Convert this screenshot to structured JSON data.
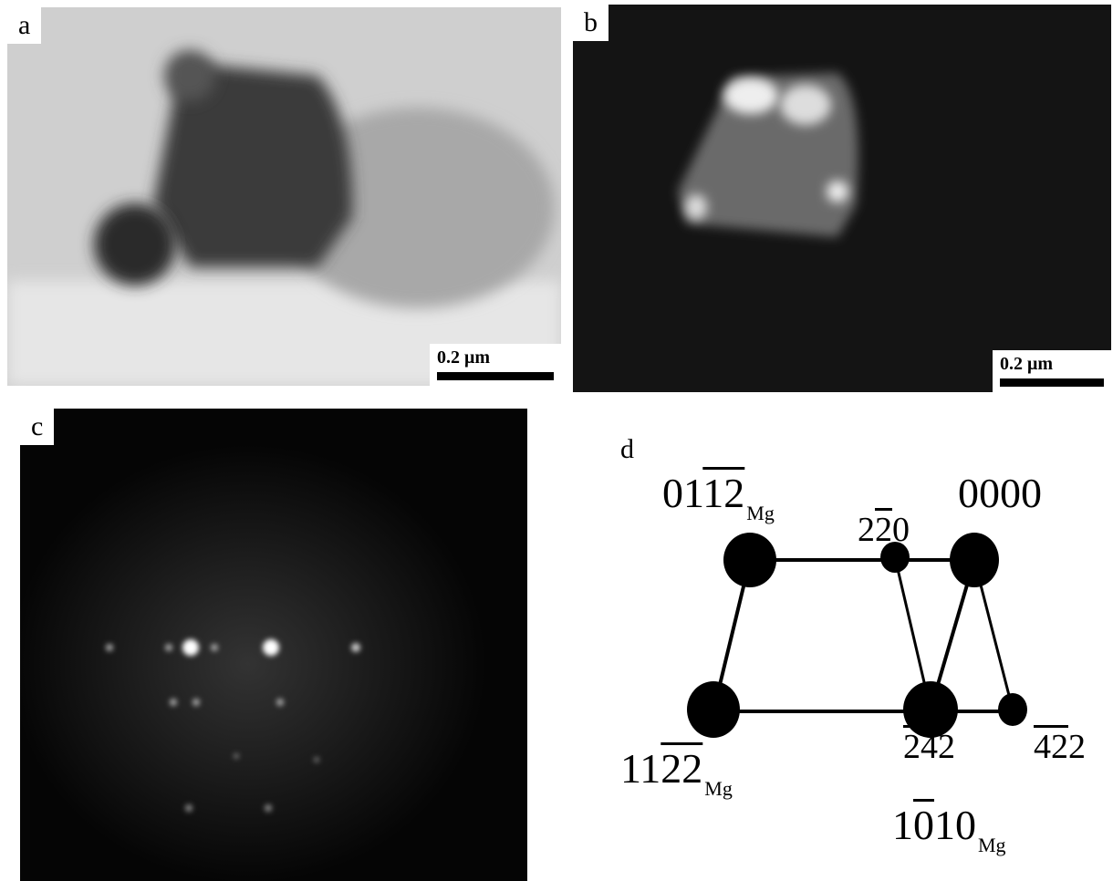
{
  "panels": [
    {
      "label": "a",
      "scale_bar": "0.2 μm"
    },
    {
      "label": "b",
      "scale_bar": "0.2 μm"
    },
    {
      "label": "c"
    },
    {
      "label": "d"
    }
  ],
  "diagram": {
    "labels": [
      {
        "segments": [
          {
            "text": "01"
          },
          {
            "text": "12",
            "overline": true
          }
        ],
        "subscript": "Mg"
      },
      {
        "segments": [
          {
            "text": "2"
          },
          {
            "text": "2",
            "overline": true
          },
          {
            "text": "0"
          }
        ]
      },
      {
        "segments": [
          {
            "text": "0000"
          }
        ]
      },
      {
        "segments": [
          {
            "text": "11"
          },
          {
            "text": "22",
            "overline": true
          }
        ],
        "subscript": "Mg"
      },
      {
        "segments": [
          {
            "text": "24",
            "overline": true
          },
          {
            "text": "2"
          }
        ]
      },
      {
        "segments": [
          {
            "text": "42",
            "overline": true
          },
          {
            "text": "2"
          }
        ]
      },
      {
        "segments": [
          {
            "text": "1"
          },
          {
            "text": "0",
            "overline": true
          },
          {
            "text": "10"
          }
        ],
        "subscript": "Mg"
      }
    ]
  }
}
